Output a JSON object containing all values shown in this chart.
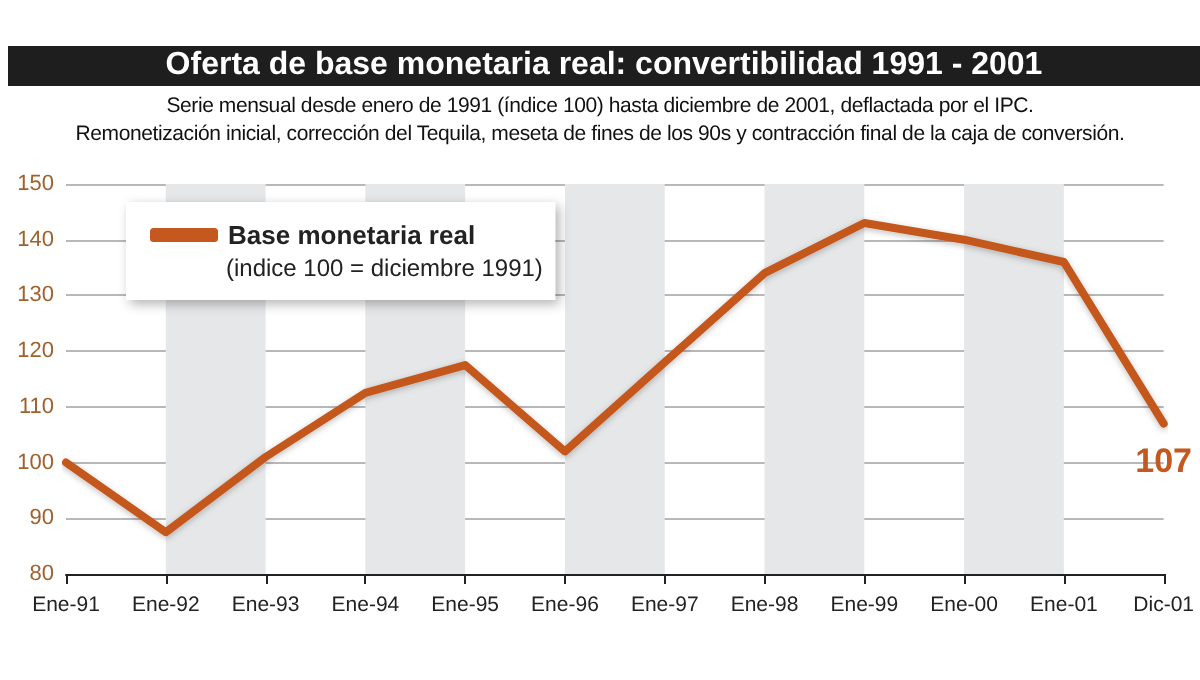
{
  "chart_data": {
    "type": "line",
    "title": "Oferta de base monetaria real: convertibilidad 1991 - 2001",
    "subtitle": "Serie mensual desde enero de 1991 (índice 100) hasta diciembre de 2001, deflactada por el IPC.\nRemonetización inicial, corrección del Tequila, meseta de fines de los 90s y contracción final de la caja de conversión.",
    "annotations": [
      "(indice 100 = diciembre 1991)"
    ],
    "categories": [
      "Ene-91",
      "Ene-92",
      "Ene-93",
      "Ene-94",
      "Ene-95",
      "Ene-96",
      "Ene-97",
      "Ene-98",
      "Ene-99",
      "Ene-00",
      "Ene-01",
      "Dic-01"
    ],
    "series": [
      {
        "name": "Base monetaria real",
        "color": "#c4581f",
        "values": [
          100,
          87.5,
          101,
          112.5,
          117.5,
          102,
          118,
          134,
          143,
          140,
          136,
          107
        ],
        "value_labels": [
          null,
          null,
          null,
          null,
          null,
          null,
          null,
          null,
          null,
          null,
          null,
          "107"
        ]
      }
    ],
    "ylim": [
      80,
      150
    ],
    "yticks": [
      80,
      90,
      100,
      110,
      120,
      130,
      140,
      150
    ],
    "bands": [
      {
        "axis": "x",
        "from": "Ene-92",
        "to": "Ene-93",
        "color": "#e6e7e9"
      },
      {
        "axis": "x",
        "from": "Ene-94",
        "to": "Ene-95",
        "color": "#e6e7e9"
      },
      {
        "axis": "x",
        "from": "Ene-96",
        "to": "Ene-97",
        "color": "#e6e7e9"
      },
      {
        "axis": "x",
        "from": "Ene-98",
        "to": "Ene-99",
        "color": "#e6e7e9"
      },
      {
        "axis": "x",
        "from": "Ene-00",
        "to": "Ene-01",
        "color": "#e6e7e9"
      }
    ],
    "grid": "y",
    "legend": "top left",
    "marker": "none",
    "line_style": "solid"
  }
}
